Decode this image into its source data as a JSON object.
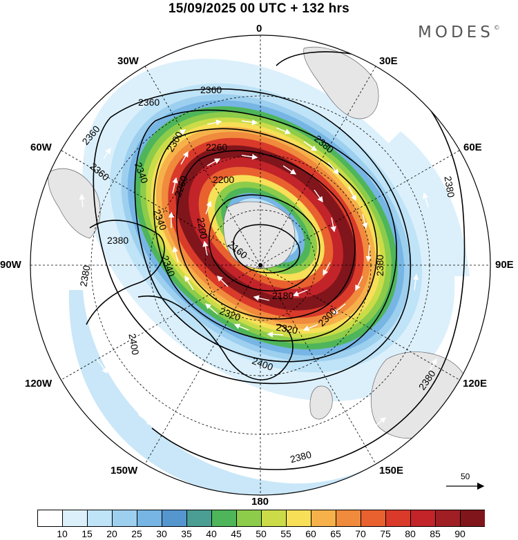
{
  "header": {
    "title": "15/09/2025  00 UTC  + 132 hrs",
    "logo_text": "MODES",
    "logo_mark": "©"
  },
  "map": {
    "projection": "south polar stereographic",
    "longitude_labels": {
      "top": "0",
      "top_right": "30E",
      "right_upper": "60E",
      "right": "90E",
      "right_lower": "120E",
      "bottom_right": "150E",
      "bottom": "180",
      "bottom_left": "150W",
      "left_lower": "120W",
      "left": "90W",
      "left_upper": "60W",
      "top_left": "30W"
    },
    "contour_labels": [
      "2360",
      "2360",
      "2360",
      "2360",
      "2340",
      "2340",
      "2300",
      "2260",
      "2260",
      "2200",
      "2200",
      "2160",
      "2180",
      "2320",
      "2320",
      "2340",
      "2300",
      "2380",
      "2380",
      "2380",
      "2380",
      "2380",
      "2380",
      "2400",
      "2400",
      "2380"
    ],
    "contour_interval": 20,
    "reference_vector": "50"
  },
  "colorbar": {
    "ticks": [
      "10",
      "15",
      "20",
      "25",
      "30",
      "35",
      "40",
      "45",
      "50",
      "55",
      "60",
      "65",
      "70",
      "75",
      "80",
      "85",
      "90"
    ],
    "colors": [
      "#ffffff",
      "#dcf0fb",
      "#bfe3f7",
      "#9dcfef",
      "#76b5e4",
      "#5596cf",
      "#4a9e93",
      "#4eb55a",
      "#8ccc4a",
      "#cbdc48",
      "#f7df58",
      "#f6b14b",
      "#f08a3c",
      "#e8612f",
      "#d93a2a",
      "#c2242a",
      "#a01f24",
      "#80151b"
    ]
  }
}
